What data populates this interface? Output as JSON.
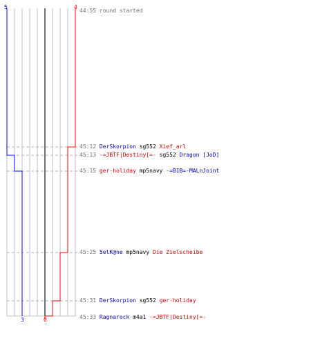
{
  "colors": {
    "blue_team": "#0000ff",
    "red_team": "#ff0000",
    "grid": "#c0c0c0",
    "center_line": "#707070",
    "guide": "#b0b0b0"
  },
  "scores": {
    "blue_start": "5",
    "red_start": "4",
    "blue_end": "3",
    "red_end": "0"
  },
  "timeline": {
    "blue_counts": [
      5,
      4,
      3
    ],
    "red_counts": [
      4,
      3,
      2,
      1,
      0
    ]
  },
  "events": [
    {
      "time": "44:55",
      "parts": [
        {
          "text": "round started",
          "color": "gray"
        }
      ]
    },
    {
      "time": "45:12",
      "parts": [
        {
          "text": "DerSkorpion",
          "color": "blue"
        },
        {
          "text": "sg552",
          "color": "black"
        },
        {
          "text": "Xief_arl",
          "color": "red"
        }
      ]
    },
    {
      "time": "45:13",
      "parts": [
        {
          "text": "-=JBTF|Destiny[=-",
          "color": "red"
        },
        {
          "text": "sg552",
          "color": "black"
        },
        {
          "text": "Dragon [JoD]",
          "color": "blue"
        }
      ]
    },
    {
      "time": "45:15",
      "parts": [
        {
          "text": "ger-holiday",
          "color": "red"
        },
        {
          "text": "mp5navy",
          "color": "black"
        },
        {
          "text": "-=BIB=-MALnJoint",
          "color": "blue"
        }
      ]
    },
    {
      "time": "45:25",
      "parts": [
        {
          "text": "5elK@ne",
          "color": "blue"
        },
        {
          "text": "mp5navy",
          "color": "black"
        },
        {
          "text": "Die Zielscheibe",
          "color": "red"
        }
      ]
    },
    {
      "time": "45:31",
      "parts": [
        {
          "text": "DerSkorpion",
          "color": "blue"
        },
        {
          "text": "sg552",
          "color": "black"
        },
        {
          "text": "ger-holiday",
          "color": "red"
        }
      ]
    },
    {
      "time": "45:33",
      "parts": [
        {
          "text": "Ragnarock",
          "color": "blue"
        },
        {
          "text": "m4a1",
          "color": "black"
        },
        {
          "text": "-=JBTF|Destiny[=-",
          "color": "red"
        }
      ]
    }
  ]
}
